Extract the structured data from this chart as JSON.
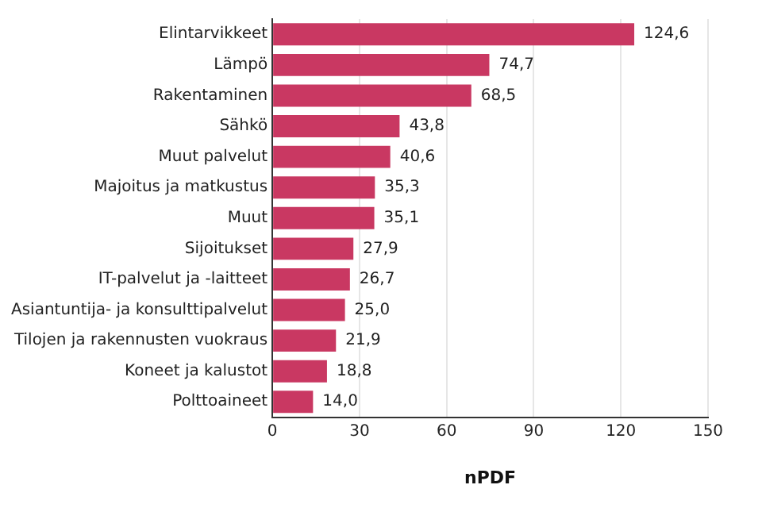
{
  "chart_data": {
    "type": "bar",
    "orientation": "horizontal",
    "xlabel": "nPDF",
    "categories": [
      "Elintarvikkeet",
      "Lämpö",
      "Rakentaminen",
      "Sähkö",
      "Muut palvelut",
      "Majoitus ja matkustus",
      "Muut",
      "Sijoitukset",
      "IT-palvelut ja -laitteet",
      "Asiantuntija- ja konsulttipalvelut",
      "Tilojen ja rakennusten vuokraus",
      "Koneet ja kalustot",
      "Polttoaineet"
    ],
    "values": [
      124.6,
      74.7,
      68.5,
      43.8,
      40.6,
      35.3,
      35.1,
      27.9,
      26.7,
      25.0,
      21.9,
      18.8,
      14.0
    ],
    "value_labels": [
      "124,6",
      "74,7",
      "68,5",
      "43,8",
      "40,6",
      "35,3",
      "35,1",
      "27,9",
      "26,7",
      "25,0",
      "21,9",
      "18,8",
      "14,0"
    ],
    "color": "#c93862",
    "xlim": [
      0,
      150
    ],
    "xticks": [
      0,
      30,
      60,
      90,
      120,
      150
    ],
    "grid": "x"
  }
}
